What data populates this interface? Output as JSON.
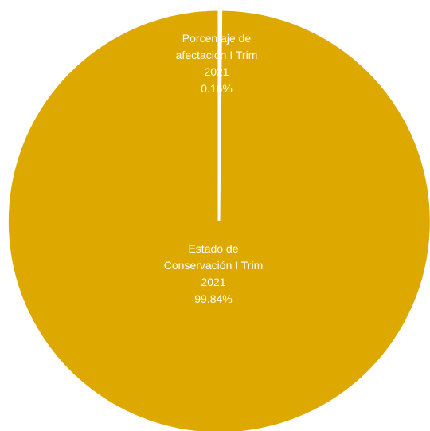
{
  "chart_data": {
    "type": "pie",
    "colors": {
      "slice": "#DDA800",
      "separator": "#FFFFFF",
      "label_text": "#FFFFFF"
    },
    "slices": [
      {
        "name_lines": [
          "Porcentaje de",
          "afectación I Trim",
          "2021"
        ],
        "value": 0.16,
        "value_label": "0.16%"
      },
      {
        "name_lines": [
          "Estado de",
          "Conservación I Trim",
          "2021"
        ],
        "value": 99.84,
        "value_label": "99.84%"
      }
    ]
  }
}
